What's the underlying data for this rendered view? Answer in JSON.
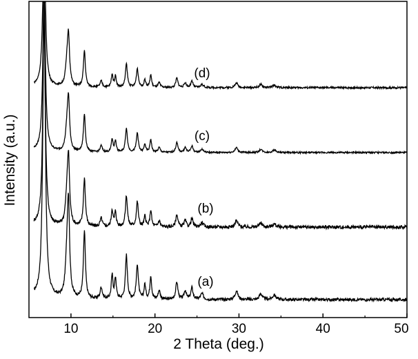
{
  "chart_data": {
    "type": "line",
    "title": "",
    "xlabel": "2 Theta (deg.)",
    "ylabel": "Intensity (a.u.)",
    "xlim": [
      5,
      50
    ],
    "x_ticks": [
      10,
      20,
      30,
      40,
      50
    ],
    "x_tick_labels": [
      "10",
      "20",
      "30",
      "40",
      "50"
    ],
    "y_ticks_shown": false,
    "grid": false,
    "legend": "none",
    "line_color": "#000000",
    "peaks": [
      {
        "x": 6.8,
        "h": 1.0,
        "w": 0.18
      },
      {
        "x": 9.7,
        "h": 0.31,
        "w": 0.16
      },
      {
        "x": 9.5,
        "h": 0.1,
        "w": 0.2
      },
      {
        "x": 11.6,
        "h": 0.23,
        "w": 0.14
      },
      {
        "x": 13.6,
        "h": 0.04,
        "w": 0.15
      },
      {
        "x": 14.9,
        "h": 0.08,
        "w": 0.12
      },
      {
        "x": 15.3,
        "h": 0.07,
        "w": 0.12
      },
      {
        "x": 16.6,
        "h": 0.15,
        "w": 0.14
      },
      {
        "x": 17.9,
        "h": 0.12,
        "w": 0.14
      },
      {
        "x": 18.8,
        "h": 0.05,
        "w": 0.12
      },
      {
        "x": 19.5,
        "h": 0.08,
        "w": 0.12
      },
      {
        "x": 20.5,
        "h": 0.03,
        "w": 0.15
      },
      {
        "x": 22.6,
        "h": 0.06,
        "w": 0.15
      },
      {
        "x": 23.6,
        "h": 0.03,
        "w": 0.15
      },
      {
        "x": 24.4,
        "h": 0.04,
        "w": 0.15
      },
      {
        "x": 25.6,
        "h": 0.02,
        "w": 0.2
      },
      {
        "x": 29.7,
        "h": 0.03,
        "w": 0.2
      },
      {
        "x": 32.6,
        "h": 0.02,
        "w": 0.2
      },
      {
        "x": 34.2,
        "h": 0.015,
        "w": 0.25
      }
    ],
    "series": [
      {
        "name": "(a)",
        "peak_height_scale": 1.0,
        "noise": 0.005
      },
      {
        "name": "(b)",
        "peak_height_scale": 0.98,
        "noise": 0.008
      },
      {
        "name": "(c)",
        "peak_height_scale": 1.05,
        "noise": 0.005
      },
      {
        "name": "(d)",
        "peak_height_scale": 1.02,
        "noise": 0.006
      }
    ]
  }
}
